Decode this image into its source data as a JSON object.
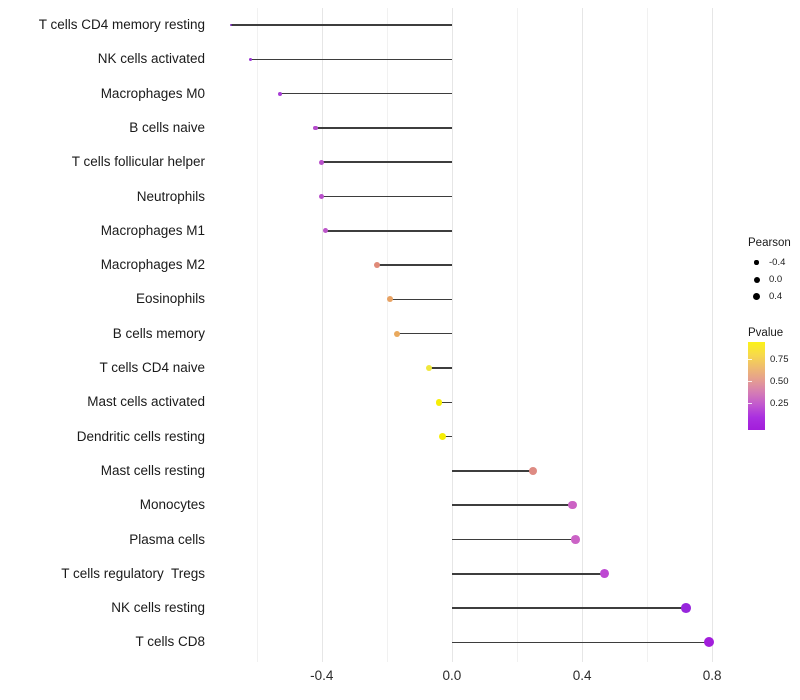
{
  "chart_data": {
    "type": "lollipop",
    "title": "",
    "xlabel": "",
    "ylabel": "",
    "grid": "on",
    "background": "#ffffff",
    "stem_color": "#3d3d3d",
    "categories": [
      "T cells CD4 memory resting",
      "NK cells activated",
      "Macrophages M0",
      "B cells naive",
      "T cells follicular helper",
      "Neutrophils",
      "Macrophages M1",
      "Macrophages M2",
      "Eosinophils",
      "B cells memory",
      "T cells CD4 naive",
      "Mast cells activated",
      "Dendritic cells resting",
      "Mast cells resting",
      "Monocytes",
      "Plasma cells",
      "T cells regulatory  Tregs",
      "NK cells resting",
      "T cells CD8"
    ],
    "series": [
      {
        "name": "Pearson",
        "values": [
          -0.68,
          -0.62,
          -0.53,
          -0.42,
          -0.4,
          -0.4,
          -0.39,
          -0.23,
          -0.19,
          -0.17,
          -0.07,
          -0.04,
          -0.03,
          0.25,
          0.37,
          0.38,
          0.47,
          0.72,
          0.79
        ]
      }
    ],
    "point_colors": [
      "#7C2BBB",
      "#9A34D4",
      "#A83ED6",
      "#B54CCC",
      "#B950CB",
      "#B950CB",
      "#BC55C9",
      "#E08A78",
      "#E8A263",
      "#E9A95D",
      "#F0E73C",
      "#F6EE06",
      "#F6EE06",
      "#DE8B83",
      "#CC62C4",
      "#CB63C6",
      "#BE48D2",
      "#9726DC",
      "#A21EDB"
    ],
    "xlim": [
      -0.753,
      0.864
    ],
    "size_domain": [
      -0.68,
      0.79
    ],
    "x_ticks": [
      {
        "value": -0.4,
        "label": "-0.4"
      },
      {
        "value": 0.0,
        "label": "0.0"
      },
      {
        "value": 0.4,
        "label": "0.4"
      },
      {
        "value": 0.8,
        "label": "0.8"
      }
    ],
    "x_minor_ticks": [
      -0.6,
      -0.2,
      0.2,
      0.6
    ],
    "legend": {
      "size": {
        "title": "Pearson",
        "entries": [
          {
            "label": "-0.4",
            "value": -0.4
          },
          {
            "label": "0.0",
            "value": 0.0
          },
          {
            "label": "0.4",
            "value": 0.4
          }
        ]
      },
      "color": {
        "title": "Pvalue",
        "tick_labels": [
          "0.75",
          "0.50",
          "0.25"
        ],
        "gradient_top_to_bottom": [
          "#FBF218",
          "#F7DA4A",
          "#EFBC6E",
          "#E59E90",
          "#D57DB4",
          "#C158CF",
          "#AA2FE0",
          "#A21EDB"
        ]
      }
    }
  }
}
